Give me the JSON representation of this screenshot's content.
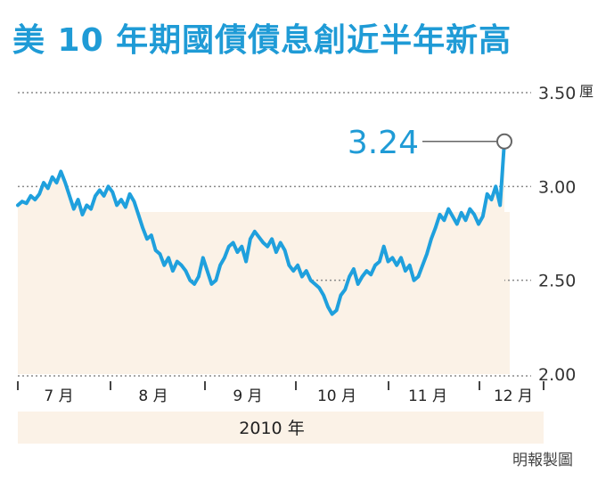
{
  "colors": {
    "title": "#1f9bd6",
    "line": "#1fa0dd",
    "fill": "#fbf2e7",
    "grid": "#8a8a8a",
    "axis": "#444444"
  },
  "chart_data": {
    "type": "line",
    "title": "美 10 年期國債債息創近半年新高",
    "unit": "厘",
    "ylim": [
      2.0,
      3.5
    ],
    "yticks": [
      "3.50",
      "3.00",
      "2.50",
      "2.00"
    ],
    "ytick_values": [
      3.5,
      3.0,
      2.5,
      2.0
    ],
    "months": [
      "7 月",
      "8 月",
      "9 月",
      "10 月",
      "11 月",
      "12 月"
    ],
    "year_label": "2010 年",
    "callout": {
      "label": "3.24",
      "value": 3.24
    },
    "series": [
      {
        "values": [
          2.9,
          2.92,
          2.91,
          2.95,
          2.93,
          2.96,
          3.02,
          2.99,
          3.05,
          3.02,
          3.08,
          3.02,
          2.95,
          2.88,
          2.93,
          2.85,
          2.9,
          2.88,
          2.95,
          2.98,
          2.95,
          3.0,
          2.97,
          2.9,
          2.93,
          2.89,
          2.96,
          2.92,
          2.85,
          2.78,
          2.72,
          2.74,
          2.66,
          2.64,
          2.58,
          2.62,
          2.55,
          2.6,
          2.58,
          2.55,
          2.5,
          2.48,
          2.52,
          2.62,
          2.55,
          2.48,
          2.5,
          2.58,
          2.62,
          2.68,
          2.7,
          2.65,
          2.68,
          2.6,
          2.72,
          2.76,
          2.73,
          2.7,
          2.68,
          2.72,
          2.65,
          2.7,
          2.66,
          2.58,
          2.55,
          2.58,
          2.52,
          2.55,
          2.5,
          2.48,
          2.46,
          2.42,
          2.36,
          2.32,
          2.34,
          2.42,
          2.45,
          2.52,
          2.56,
          2.48,
          2.52,
          2.55,
          2.53,
          2.58,
          2.6,
          2.68,
          2.6,
          2.62,
          2.58,
          2.62,
          2.55,
          2.58,
          2.5,
          2.52,
          2.58,
          2.64,
          2.72,
          2.78,
          2.85,
          2.82,
          2.88,
          2.84,
          2.8,
          2.86,
          2.82,
          2.88,
          2.85,
          2.8,
          2.84,
          2.96,
          2.93,
          3.0,
          2.9,
          3.24
        ]
      }
    ]
  },
  "credit": "明報製圖"
}
